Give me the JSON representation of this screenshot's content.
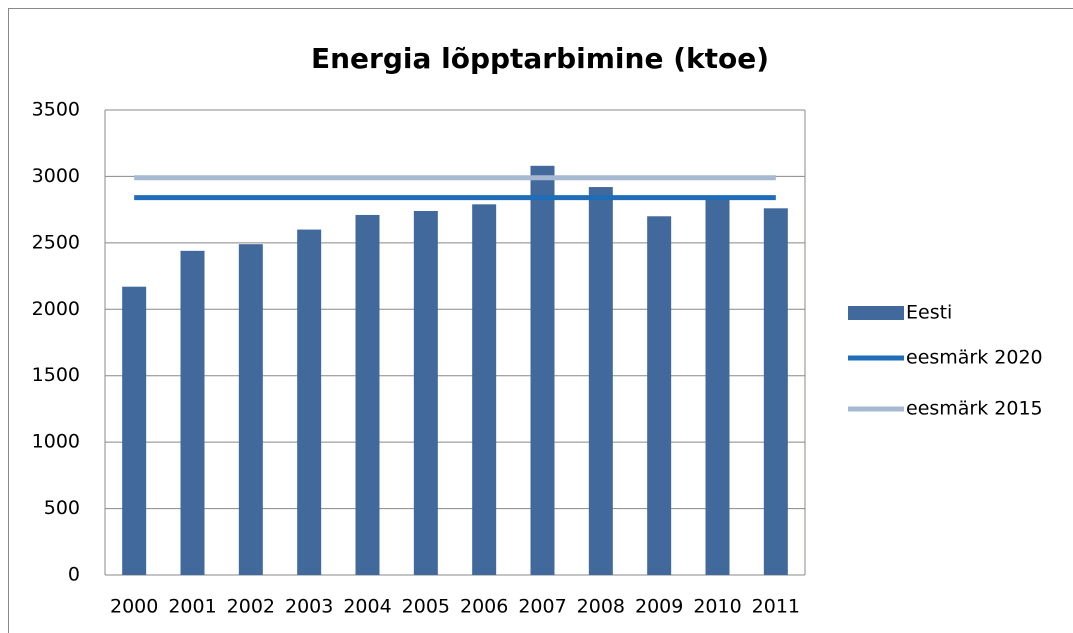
{
  "chart_data": {
    "type": "bar",
    "title": "Energia lõpptarbimine (ktoe)",
    "categories": [
      "2000",
      "2001",
      "2002",
      "2003",
      "2004",
      "2005",
      "2006",
      "2007",
      "2008",
      "2009",
      "2010",
      "2011"
    ],
    "series": [
      {
        "name": "Eesti",
        "type": "bar",
        "color": "#41699c",
        "values": [
          2170,
          2440,
          2490,
          2600,
          2710,
          2740,
          2790,
          3080,
          2920,
          2700,
          2840,
          2760
        ]
      },
      {
        "name": "eesmärk 2020",
        "type": "line",
        "color": "#1f6db6",
        "values": [
          2840,
          2840,
          2840,
          2840,
          2840,
          2840,
          2840,
          2840,
          2840,
          2840,
          2840,
          2840
        ]
      },
      {
        "name": "eesmärk 2015",
        "type": "line",
        "color": "#a7b8d3",
        "values": [
          2990,
          2990,
          2990,
          2990,
          2990,
          2990,
          2990,
          2990,
          2990,
          2990,
          2990,
          2990
        ]
      }
    ],
    "ylim": [
      0,
      3500
    ],
    "yticks": [
      0,
      500,
      1000,
      1500,
      2000,
      2500,
      3000,
      3500
    ],
    "grid": true,
    "legend": "right"
  }
}
